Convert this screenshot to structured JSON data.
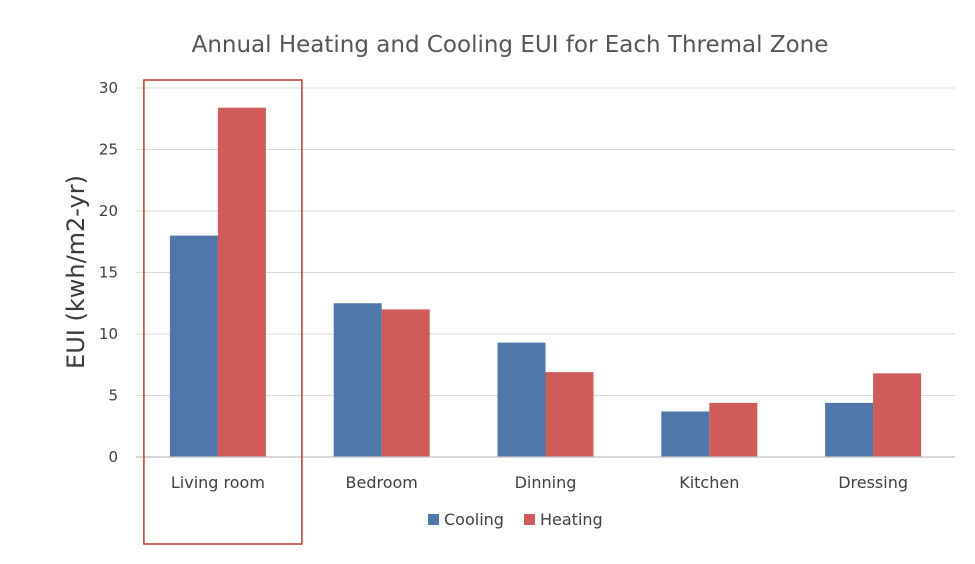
{
  "chart_data": {
    "type": "bar",
    "title": "Annual Heating and Cooling EUI for Each Thremal Zone",
    "ylabel": "EUI (kwh/m2-yr)",
    "xlabel": "",
    "categories": [
      "Living room",
      "Bedroom",
      "Dinning",
      "Kitchen",
      "Dressing"
    ],
    "series": [
      {
        "name": "Cooling",
        "color": "#4f77aa",
        "values": [
          18.0,
          12.5,
          9.3,
          3.7,
          4.4
        ]
      },
      {
        "name": "Heating",
        "color": "#cf5b5b",
        "values": [
          28.4,
          12.0,
          6.9,
          4.4,
          6.8
        ]
      }
    ],
    "ylim": [
      0,
      30
    ],
    "yticks": [
      "0",
      "5",
      "10",
      "15",
      "20",
      "25",
      "30"
    ],
    "grid": true,
    "legend": "bottom",
    "highlight": {
      "category": "Living room",
      "color": "#c0392b"
    }
  }
}
